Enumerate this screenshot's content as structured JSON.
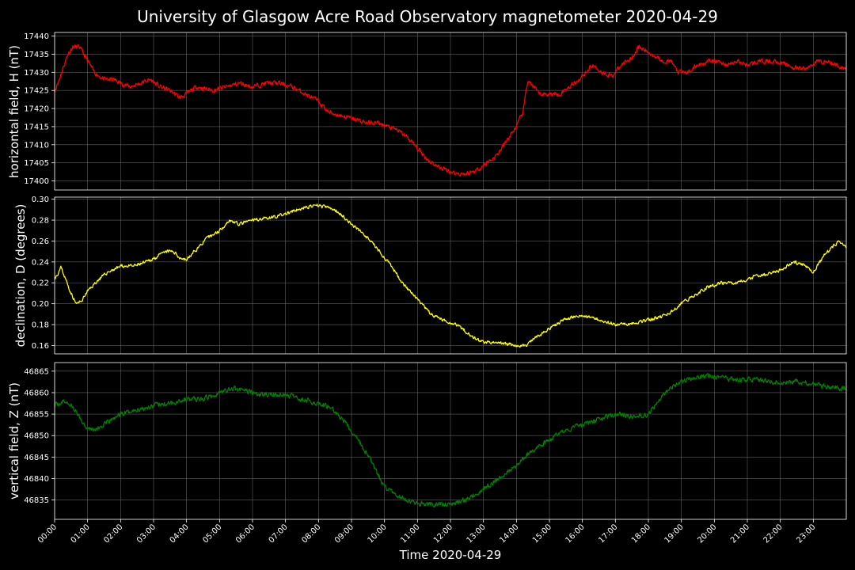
{
  "figure": {
    "title": "University of Glasgow Acre Road Observatory magnetometer 2020-04-29",
    "xlabel": "Time 2020-04-29"
  },
  "chart_data": [
    {
      "type": "line",
      "ylabel": "horizontal field, H (nT)",
      "color": "#ff0000",
      "xlim": [
        0,
        24
      ],
      "ylim": [
        17397.5,
        17441
      ],
      "yticks": [
        17400,
        17405,
        17410,
        17415,
        17420,
        17425,
        17430,
        17435,
        17440
      ],
      "x": [
        0,
        0.1,
        0.25,
        0.4,
        0.55,
        0.75,
        0.95,
        1.2,
        1.5,
        1.8,
        2.0,
        2.3,
        2.6,
        2.9,
        3.2,
        3.5,
        3.8,
        4.0,
        4.3,
        4.8,
        5.2,
        5.6,
        6.0,
        6.4,
        6.8,
        7.2,
        7.6,
        8.0,
        8.3,
        8.7,
        9.1,
        9.5,
        9.8,
        10.1,
        10.4,
        10.7,
        11.0,
        11.3,
        11.6,
        11.9,
        12.2,
        12.5,
        12.8,
        13.1,
        13.4,
        13.7,
        14.0,
        14.2,
        14.35,
        14.5,
        14.7,
        15.0,
        15.3,
        15.6,
        15.9,
        16.1,
        16.3,
        16.6,
        16.9,
        17.1,
        17.3,
        17.5,
        17.7,
        17.9,
        18.1,
        18.3,
        18.5,
        18.7,
        18.9,
        19.2,
        19.5,
        19.8,
        20.1,
        20.4,
        20.7,
        21.0,
        21.3,
        21.6,
        21.9,
        22.2,
        22.5,
        22.8,
        23.1,
        23.4,
        23.7,
        24.0
      ],
      "y": [
        17425,
        17427,
        17431,
        17435,
        17437,
        17437,
        17434,
        17430,
        17428,
        17428,
        17427,
        17426,
        17427,
        17428,
        17426,
        17425,
        17423,
        17424,
        17426,
        17425,
        17426,
        17427,
        17426,
        17427,
        17427,
        17426,
        17424,
        17422,
        17419,
        17418,
        17417,
        17416,
        17416,
        17415,
        17414,
        17412,
        17409,
        17406,
        17404,
        17403,
        17402,
        17402,
        17403,
        17405,
        17407,
        17411,
        17415,
        17419,
        17428,
        17426,
        17424,
        17424,
        17424,
        17426,
        17428,
        17430,
        17432,
        17430,
        17429,
        17431,
        17433,
        17434,
        17437,
        17436,
        17435,
        17434,
        17433,
        17433,
        17430,
        17430,
        17432,
        17433,
        17433,
        17432,
        17433,
        17432,
        17433,
        17433,
        17433,
        17432,
        17431,
        17431,
        17433,
        17433,
        17432,
        17431
      ],
      "noise": 0.9,
      "seed": 11
    },
    {
      "type": "line",
      "ylabel": "declination, D (degrees)",
      "color": "#ffff00",
      "xlim": [
        0,
        24
      ],
      "ylim": [
        0.152,
        0.302
      ],
      "yticks": [
        0.16,
        0.18,
        0.2,
        0.22,
        0.24,
        0.26,
        0.28,
        0.3
      ],
      "x": [
        0,
        0.1,
        0.2,
        0.3,
        0.5,
        0.65,
        0.8,
        1.0,
        1.3,
        1.6,
        2.0,
        2.4,
        2.8,
        3.1,
        3.4,
        3.6,
        3.8,
        4.0,
        4.3,
        4.6,
        5.0,
        5.3,
        5.6,
        6.0,
        6.4,
        6.8,
        7.2,
        7.6,
        8.0,
        8.3,
        8.6,
        9.0,
        9.4,
        9.8,
        10.2,
        10.6,
        11.0,
        11.4,
        11.8,
        12.2,
        12.6,
        12.9,
        13.2,
        13.6,
        14.0,
        14.3,
        14.6,
        15.0,
        15.4,
        15.8,
        16.2,
        16.6,
        17.0,
        17.4,
        17.8,
        18.2,
        18.6,
        19.0,
        19.4,
        19.8,
        20.2,
        20.6,
        20.9,
        21.2,
        21.6,
        22.0,
        22.4,
        22.8,
        23.0,
        23.3,
        23.6,
        23.8,
        24.0
      ],
      "y": [
        0.225,
        0.229,
        0.235,
        0.226,
        0.21,
        0.2,
        0.202,
        0.212,
        0.222,
        0.23,
        0.236,
        0.236,
        0.24,
        0.245,
        0.25,
        0.25,
        0.244,
        0.242,
        0.252,
        0.262,
        0.27,
        0.28,
        0.276,
        0.28,
        0.282,
        0.284,
        0.288,
        0.292,
        0.294,
        0.292,
        0.288,
        0.276,
        0.266,
        0.252,
        0.236,
        0.218,
        0.204,
        0.19,
        0.184,
        0.18,
        0.17,
        0.164,
        0.163,
        0.162,
        0.16,
        0.16,
        0.168,
        0.176,
        0.184,
        0.188,
        0.188,
        0.184,
        0.18,
        0.181,
        0.183,
        0.186,
        0.19,
        0.2,
        0.208,
        0.216,
        0.22,
        0.22,
        0.222,
        0.226,
        0.228,
        0.232,
        0.24,
        0.236,
        0.23,
        0.245,
        0.255,
        0.26,
        0.254
      ],
      "noise": 0.0022,
      "seed": 23
    },
    {
      "type": "line",
      "ylabel": "vertical field, Z (nT)",
      "color": "#008000",
      "xlim": [
        0,
        24
      ],
      "ylim": [
        46830.5,
        46867
      ],
      "yticks": [
        46835,
        46840,
        46845,
        46850,
        46855,
        46860,
        46865
      ],
      "x": [
        0,
        0.3,
        0.5,
        0.7,
        0.9,
        1.1,
        1.3,
        1.6,
        2.0,
        2.5,
        3.0,
        3.5,
        4.0,
        4.5,
        5.0,
        5.4,
        5.8,
        6.2,
        6.6,
        7.0,
        7.5,
        8.0,
        8.4,
        8.8,
        9.2,
        9.6,
        10.0,
        10.4,
        10.8,
        11.2,
        11.6,
        12.0,
        12.4,
        12.8,
        13.2,
        13.6,
        14.0,
        14.4,
        14.8,
        15.2,
        15.6,
        16.0,
        16.4,
        16.8,
        17.2,
        17.6,
        18.0,
        18.3,
        18.7,
        19.0,
        19.4,
        19.8,
        20.2,
        20.6,
        21.0,
        21.4,
        21.8,
        22.2,
        22.6,
        23.0,
        23.4,
        23.8,
        24.0
      ],
      "y": [
        46857,
        46858,
        46857,
        46855,
        46852.5,
        46851.5,
        46851.5,
        46853,
        46855,
        46856,
        46857,
        46857.5,
        46858.5,
        46858.5,
        46860,
        46861,
        46860.5,
        46859.5,
        46859.5,
        46859.5,
        46858.5,
        46857.5,
        46856.5,
        46853,
        46849,
        46844,
        46838,
        46836,
        46834.5,
        46834,
        46834,
        46834,
        46835,
        46836.5,
        46838.5,
        46841,
        46843,
        46846,
        46848,
        46850,
        46851.5,
        46852.5,
        46853.5,
        46854.5,
        46855,
        46854.5,
        46855,
        46858,
        46861,
        46862.5,
        46863.5,
        46864,
        46863.5,
        46863,
        46863,
        46863,
        46862.5,
        46862.5,
        46862.5,
        46862,
        46861.5,
        46861,
        46861
      ],
      "noise": 0.8,
      "seed": 37
    }
  ],
  "xaxis": {
    "ticks": [
      "00:00",
      "01:00",
      "02:00",
      "03:00",
      "04:00",
      "05:00",
      "06:00",
      "07:00",
      "08:00",
      "09:00",
      "10:00",
      "11:00",
      "12:00",
      "13:00",
      "14:00",
      "15:00",
      "16:00",
      "17:00",
      "18:00",
      "19:00",
      "20:00",
      "21:00",
      "22:00",
      "23:00"
    ]
  },
  "style": {
    "background": "#000000",
    "text": "#ffffff",
    "grid": "#808080"
  }
}
